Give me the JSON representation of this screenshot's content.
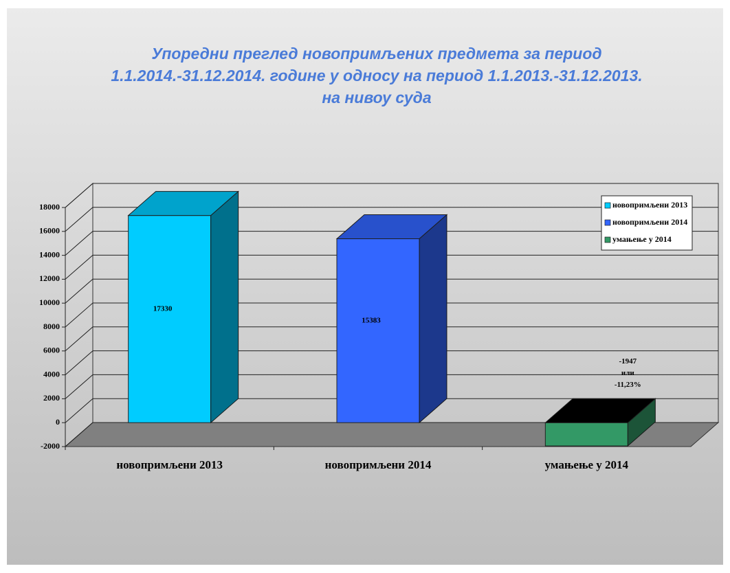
{
  "chart_data": {
    "type": "bar3d",
    "title": [
      "Упоредни преглед новопримљених предмета за период",
      "1.1.2014.-31.12.2014. године у односу на период 1.1.2013.-31.12.2013.",
      "на нивоу суда"
    ],
    "categories": [
      "новопримљени 2013",
      "новопримљени 2014",
      "умањење у 2014"
    ],
    "values": [
      17330,
      15383,
      -1947
    ],
    "value_labels": [
      "17330",
      "15383",
      "-1947\nили\n-11,23%"
    ],
    "colors": [
      "#00ccff",
      "#3366ff",
      "#339966"
    ],
    "ylim": [
      -2000,
      18000
    ],
    "yticks": [
      -2000,
      0,
      2000,
      4000,
      6000,
      8000,
      10000,
      12000,
      14000,
      16000,
      18000
    ],
    "grid": true,
    "legend": "top-right"
  }
}
